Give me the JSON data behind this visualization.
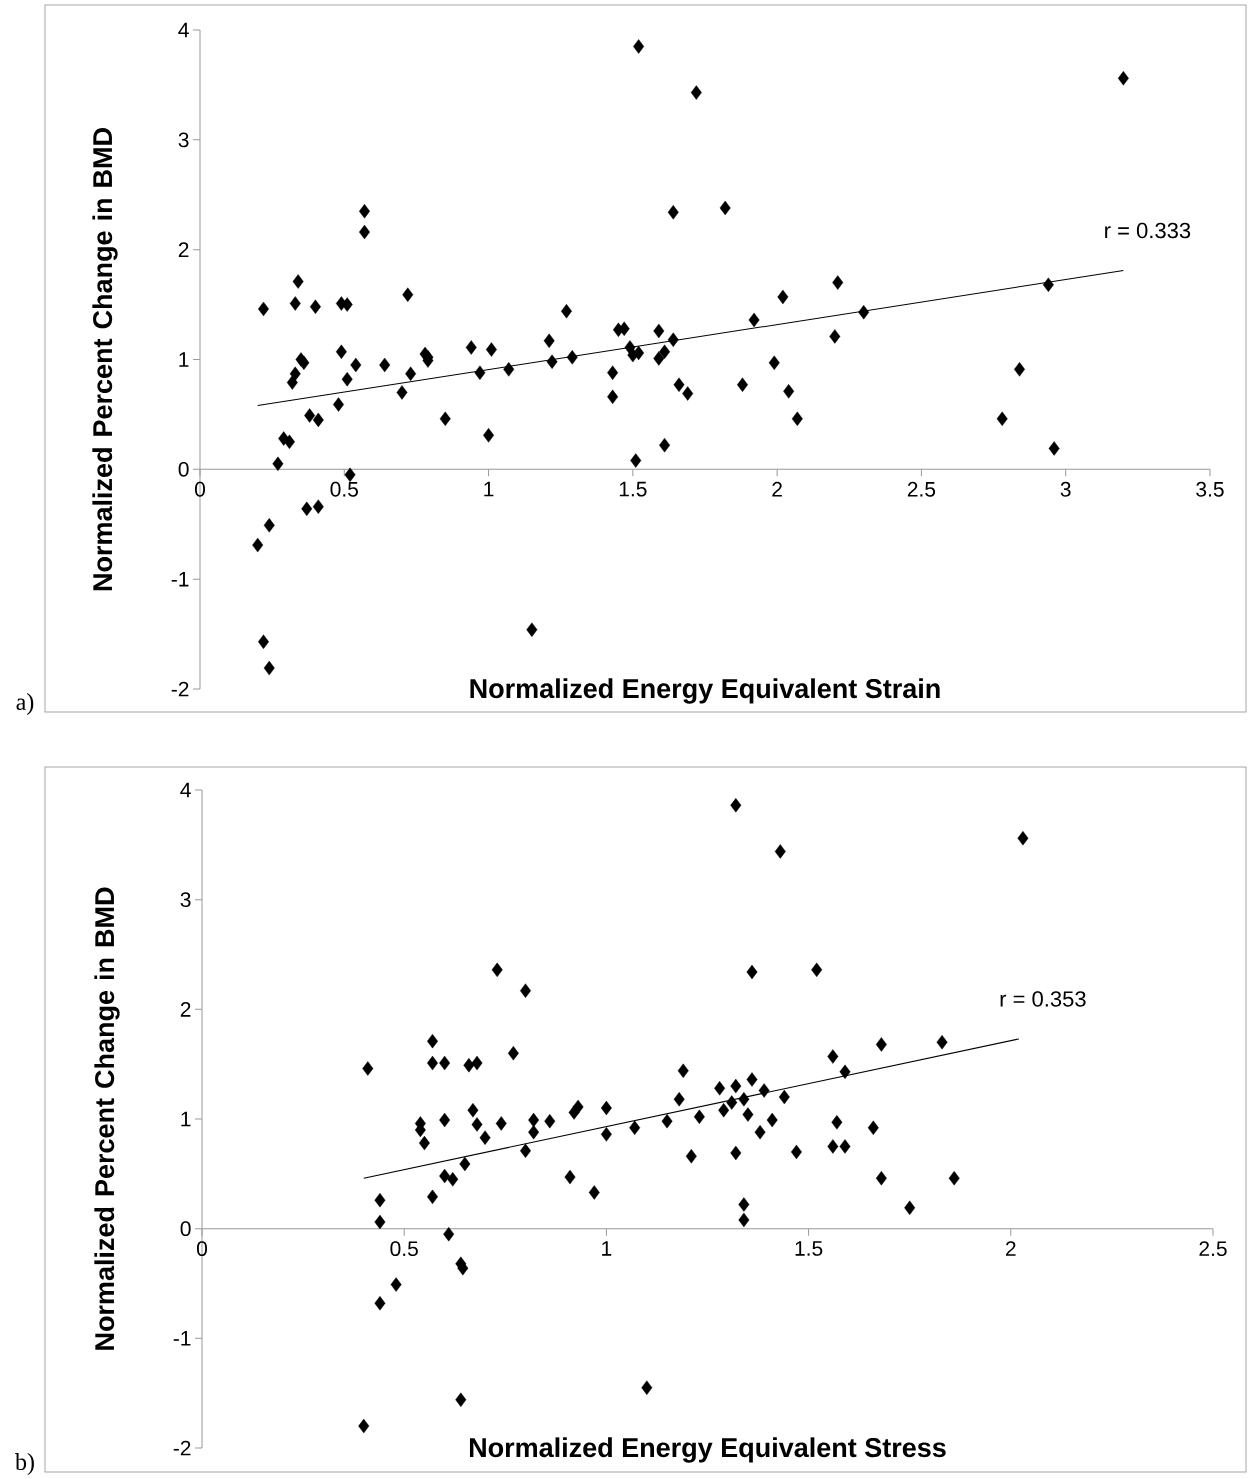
{
  "chart_data": [
    {
      "type": "scatter",
      "xlabel": "Normalized Energy Equivalent Strain",
      "ylabel": "Normalized Percent Change in BMD",
      "xlim": [
        0,
        3.5
      ],
      "ylim": [
        -2,
        4
      ],
      "xticks": [
        0,
        0.5,
        1,
        1.5,
        2,
        2.5,
        3,
        3.5
      ],
      "yticks": [
        -2,
        -1,
        0,
        1,
        2,
        3,
        4
      ],
      "series": [
        {
          "marker": "diamond",
          "color": "#000000",
          "x": [
            0.2,
            0.22,
            0.24,
            0.24,
            0.22,
            0.27,
            0.29,
            0.31,
            0.32,
            0.33,
            0.34,
            0.33,
            0.35,
            0.36,
            0.38,
            0.37,
            0.41,
            0.41,
            0.4,
            0.48,
            0.49,
            0.49,
            0.51,
            0.51,
            0.52,
            0.54,
            0.57,
            0.57,
            0.64,
            0.7,
            0.72,
            0.73,
            0.78,
            0.79,
            0.79,
            0.85,
            0.94,
            0.97,
            1.0,
            1.01,
            1.07,
            1.15,
            1.21,
            1.22,
            1.27,
            1.29,
            1.43,
            1.43,
            1.45,
            1.47,
            1.49,
            1.5,
            1.52,
            1.51,
            1.52,
            1.59,
            1.59,
            1.61,
            1.61,
            1.64,
            1.64,
            1.66,
            1.69,
            1.72,
            1.82,
            1.88,
            1.92,
            1.99,
            2.02,
            2.04,
            2.07,
            2.21,
            2.2,
            2.3,
            2.78,
            2.84,
            2.94,
            2.96,
            3.2
          ],
          "values": [
            -0.69,
            -1.57,
            -1.81,
            -0.51,
            1.46,
            0.05,
            0.28,
            0.25,
            0.79,
            0.87,
            1.71,
            1.51,
            1.0,
            0.97,
            0.49,
            -0.36,
            -0.34,
            0.45,
            1.48,
            0.59,
            1.51,
            1.07,
            0.82,
            1.5,
            -0.05,
            0.95,
            2.35,
            2.16,
            0.95,
            0.7,
            1.59,
            0.87,
            1.05,
            1.02,
            0.99,
            0.46,
            1.11,
            0.88,
            0.31,
            1.09,
            0.91,
            -1.46,
            1.17,
            0.98,
            1.44,
            1.02,
            0.66,
            0.88,
            1.27,
            1.28,
            1.11,
            1.04,
            1.06,
            0.08,
            3.85,
            1.26,
            1.01,
            1.07,
            0.22,
            2.34,
            1.18,
            0.77,
            0.69,
            3.43,
            2.38,
            0.77,
            1.36,
            0.97,
            1.57,
            0.71,
            0.46,
            1.7,
            1.21,
            1.43,
            0.46,
            0.91,
            1.68,
            0.19,
            3.56
          ]
        },
        {
          "type": "line",
          "color": "#000000",
          "x": [
            0.2,
            3.2
          ],
          "values": [
            0.58,
            1.81
          ]
        }
      ],
      "annotations": [
        "a)",
        "r = 0.333"
      ]
    },
    {
      "type": "scatter",
      "xlabel": "Normalized Energy Equivalent Stress",
      "ylabel": "Normalized Percent Change in BMD",
      "xlim": [
        0,
        2.5
      ],
      "ylim": [
        -2,
        4
      ],
      "xticks": [
        0,
        0.5,
        1,
        1.5,
        2,
        2.5
      ],
      "yticks": [
        -2,
        -1,
        0,
        1,
        2,
        3,
        4
      ],
      "series": [
        {
          "marker": "diamond",
          "color": "#000000",
          "x": [
            0.4,
            0.41,
            0.44,
            0.44,
            0.44,
            0.48,
            0.54,
            0.54,
            0.55,
            0.57,
            0.57,
            0.57,
            0.6,
            0.6,
            0.6,
            0.61,
            0.62,
            0.64,
            0.645,
            0.64,
            0.65,
            0.66,
            0.68,
            0.67,
            0.68,
            0.7,
            0.73,
            0.74,
            0.77,
            0.8,
            0.8,
            0.82,
            0.82,
            0.86,
            0.91,
            0.92,
            0.93,
            0.97,
            1.0,
            1.0,
            1.07,
            1.1,
            1.15,
            1.18,
            1.19,
            1.21,
            1.23,
            1.28,
            1.32,
            1.29,
            1.31,
            1.34,
            1.35,
            1.36,
            1.39,
            1.32,
            1.38,
            1.41,
            1.44,
            1.47,
            1.34,
            1.34,
            1.36,
            1.52,
            1.32,
            1.43,
            1.56,
            1.59,
            1.68,
            1.83,
            1.57,
            1.66,
            1.56,
            1.59,
            1.68,
            1.86,
            1.75,
            2.03
          ],
          "values": [
            -1.8,
            1.46,
            -0.68,
            0.06,
            0.26,
            -0.51,
            0.96,
            0.9,
            0.78,
            1.71,
            1.51,
            0.29,
            1.51,
            0.99,
            0.48,
            -0.05,
            0.45,
            -0.32,
            -0.36,
            -1.56,
            0.59,
            1.49,
            1.51,
            1.08,
            0.95,
            0.83,
            2.36,
            0.96,
            1.6,
            0.71,
            2.17,
            0.88,
            0.99,
            0.98,
            0.47,
            1.06,
            1.11,
            0.33,
            0.86,
            1.1,
            0.92,
            -1.45,
            0.98,
            1.18,
            1.44,
            0.66,
            1.02,
            1.28,
            1.3,
            1.08,
            1.15,
            1.18,
            1.04,
            1.36,
            1.26,
            0.69,
            0.88,
            0.99,
            1.2,
            0.7,
            0.22,
            0.08,
            2.34,
            2.36,
            3.86,
            3.44,
            1.57,
            1.43,
            1.68,
            1.7,
            0.97,
            0.92,
            0.75,
            0.75,
            0.46,
            0.46,
            0.19,
            3.56
          ]
        },
        {
          "type": "line",
          "color": "#000000",
          "x": [
            0.4,
            2.02
          ],
          "values": [
            0.46,
            1.73
          ]
        }
      ],
      "annotations": [
        "b)",
        "r = 0.353"
      ]
    }
  ]
}
